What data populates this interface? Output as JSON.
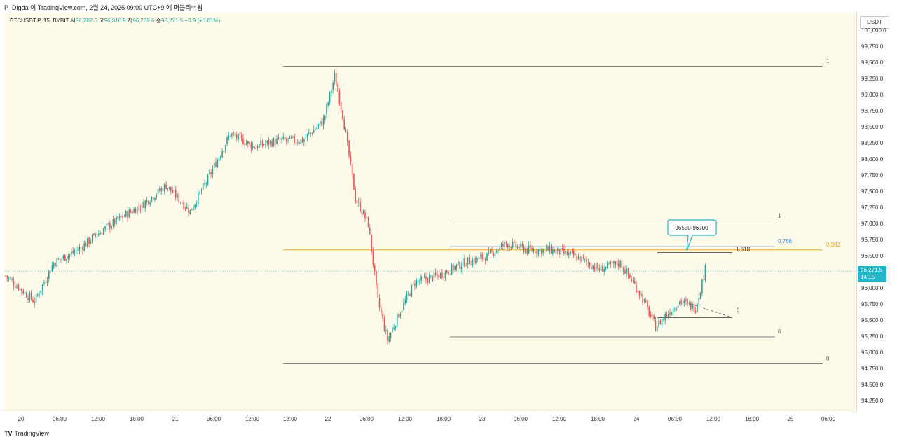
{
  "header": {
    "text": "P_Digda 이 TradingView.com, 2월 24, 2025 09:00 UTC+9 에 퍼블리쉬됨"
  },
  "ohlc": {
    "symbol": "BTCUSDT.P, 15, BYBIT",
    "open_label": "시",
    "open": "96,262.6",
    "high_label": "고",
    "high": "96,310.9",
    "low_label": "저",
    "low": "96,262.6",
    "close_label": "종",
    "close": "96,271.5",
    "change": "+8.9 (+0.01%)"
  },
  "currency": "USDT",
  "price_tag": {
    "price": "96,271.5",
    "countdown": "14:15"
  },
  "footer": {
    "brand": "TradingView",
    "logo": "tv-logo-icon"
  },
  "colors": {
    "up": "#26a69a",
    "down": "#ef5350",
    "background": "#fefbea",
    "fib_orange": "#f59e0b",
    "fib_blue": "#3b82f6",
    "tag": "#24b5c8"
  },
  "annotation": {
    "callout": "96550-96700"
  },
  "chart_data": {
    "type": "candlestick",
    "timeframe": "15m",
    "ylim": [
      94100,
      100100
    ],
    "y_ticks": [
      "100,000.0",
      "99,750.0",
      "99,500.0",
      "99,250.0",
      "99,000.0",
      "98,750.0",
      "98,500.0",
      "98,250.0",
      "98,000.0",
      "97,750.0",
      "97,500.0",
      "97,250.0",
      "97,000.0",
      "96,750.0",
      "96,500.0",
      "96,250.0",
      "96,000.0",
      "95,750.0",
      "95,500.0",
      "95,250.0",
      "95,000.0",
      "94,750.0",
      "94,500.0",
      "94,250.0"
    ],
    "x_ticks": [
      "20",
      "06:00",
      "12:00",
      "18:00",
      "21",
      "06:00",
      "12:00",
      "18:00",
      "22",
      "06:00",
      "12:00",
      "18:00",
      "23",
      "06:00",
      "12:00",
      "18:00",
      "24",
      "06:00",
      "12:00",
      "18:00",
      "25",
      "06:00"
    ],
    "approx_close_path": [
      [
        0,
        96200
      ],
      [
        18,
        95800
      ],
      [
        30,
        96400
      ],
      [
        45,
        96600
      ],
      [
        60,
        96900
      ],
      [
        72,
        97100
      ],
      [
        85,
        97300
      ],
      [
        100,
        97600
      ],
      [
        115,
        97200
      ],
      [
        126,
        97700
      ],
      [
        140,
        98400
      ],
      [
        155,
        98200
      ],
      [
        170,
        98300
      ],
      [
        185,
        98300
      ],
      [
        198,
        98600
      ],
      [
        205,
        99300
      ],
      [
        210,
        98700
      ],
      [
        218,
        97400
      ],
      [
        226,
        97000
      ],
      [
        232,
        95800
      ],
      [
        238,
        95200
      ],
      [
        245,
        95600
      ],
      [
        255,
        96100
      ],
      [
        270,
        96200
      ],
      [
        285,
        96400
      ],
      [
        300,
        96500
      ],
      [
        312,
        96700
      ],
      [
        325,
        96600
      ],
      [
        340,
        96600
      ],
      [
        355,
        96500
      ],
      [
        370,
        96300
      ],
      [
        383,
        96400
      ],
      [
        396,
        95900
      ],
      [
        405,
        95400
      ],
      [
        412,
        95600
      ],
      [
        420,
        95800
      ],
      [
        430,
        95700
      ],
      [
        436,
        96300
      ]
    ],
    "fib_levels": [
      {
        "label": "1",
        "price": 99450
      },
      {
        "label": "0",
        "price": 94830
      },
      {
        "label": "1",
        "price": 97050
      },
      {
        "label": "0",
        "price": 95250
      },
      {
        "label": "0.382",
        "price": 96600
      },
      {
        "label": "0.786",
        "price": 96650
      },
      {
        "label": "1.618",
        "price": 96560
      },
      {
        "label": "0",
        "price": 95550
      }
    ]
  }
}
